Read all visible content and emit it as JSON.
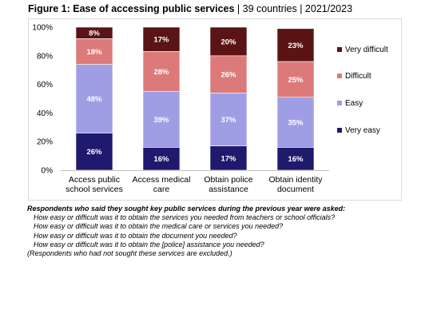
{
  "header": {
    "title_bold": "Figure 1: Ease of accessing public services",
    "title_rest": " | 39 countries | 2021/2023"
  },
  "colors": {
    "very_easy": "#1f1a6e",
    "easy": "#9f9ee5",
    "difficult": "#dc7a7a",
    "very_difficult": "#5a1416"
  },
  "chart_data": {
    "type": "bar",
    "stacked": true,
    "percent_axis": true,
    "title": "Ease of accessing public services",
    "categories": [
      [
        "Access public",
        "school services"
      ],
      [
        "Access medical",
        "care"
      ],
      [
        "Obtain police",
        "assistance"
      ],
      [
        "Obtain identity",
        "document"
      ]
    ],
    "series": [
      {
        "name": "Very easy",
        "values": [
          26,
          16,
          17,
          16
        ]
      },
      {
        "name": "Easy",
        "values": [
          48,
          39,
          37,
          35
        ]
      },
      {
        "name": "Difficult",
        "values": [
          18,
          28,
          26,
          25
        ]
      },
      {
        "name": "Very difficult",
        "values": [
          8,
          17,
          20,
          23
        ]
      }
    ],
    "y_ticks": [
      "0%",
      "20%",
      "40%",
      "60%",
      "80%",
      "100%"
    ],
    "ylim": [
      0,
      100
    ],
    "legend_position": "right",
    "legend_order": [
      "Very difficult",
      "Difficult",
      "Easy",
      "Very easy"
    ]
  },
  "notes": {
    "lead": "Respondents who said they sought key public services during the previous year were asked:",
    "questions": [
      "How easy or difficult was it to obtain the services you needed from teachers or school officials?",
      "How easy or difficult was it to obtain the medical care or services you needed?",
      "How easy or difficult was it to obtain the document you needed?",
      "How easy or difficult was it to obtain the [police] assistance you needed?"
    ],
    "footer": "(Respondents who had not sought these services are excluded.)"
  }
}
